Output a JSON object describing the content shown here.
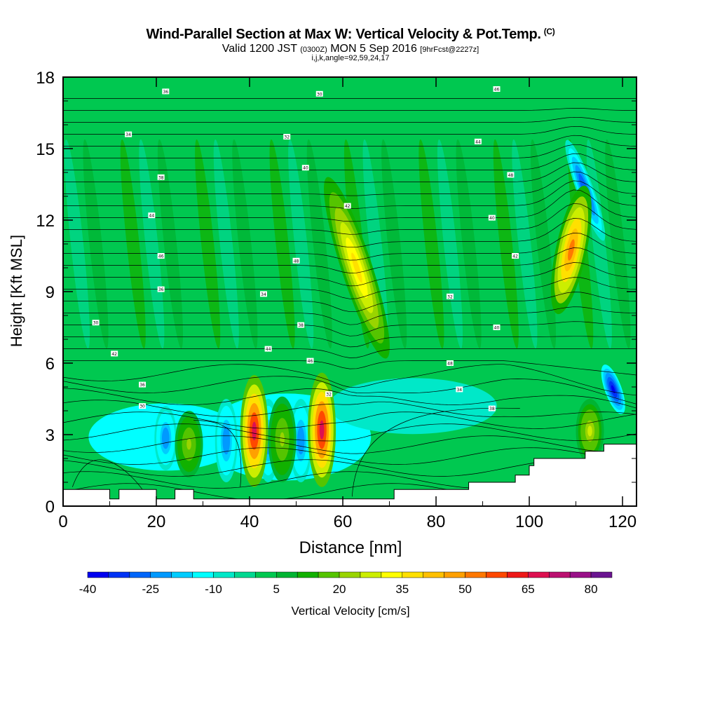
{
  "title": "Wind-Parallel Section at Max W: Vertical Velocity & Pot.Temp.",
  "title_tag": "(C)",
  "subtitle_valid": "Valid 1200 JST",
  "subtitle_utc": "(0300Z)",
  "subtitle_date": "MON 5 Sep 2016",
  "subtitle_fcst": "[9hrFcst@2227z]",
  "subtitle2": "i,j,k,angle=92,59,24,17",
  "chart_data": {
    "type": "heatmap",
    "xlabel": "Distance [nm]",
    "ylabel": "Height [Kft MSL]",
    "xlim": [
      0,
      123
    ],
    "ylim": [
      0,
      18
    ],
    "x_ticks": [
      0,
      20,
      40,
      60,
      80,
      100,
      120
    ],
    "y_ticks": [
      0,
      3,
      6,
      9,
      12,
      15,
      18
    ],
    "colorbar": {
      "label": "Vertical Velocity [cm/s]",
      "min": -40,
      "max": 85,
      "step": 5,
      "tick_labels": [
        "-40",
        "-25",
        "-10",
        "5",
        "20",
        "35",
        "50",
        "65",
        "80"
      ],
      "colors": [
        "#0000f0",
        "#0033f5",
        "#0066fa",
        "#0099ff",
        "#00ccff",
        "#00ffff",
        "#00e8c8",
        "#00d890",
        "#00c850",
        "#00b432",
        "#11b100",
        "#55c400",
        "#99d400",
        "#ccee00",
        "#ffff00",
        "#ffe000",
        "#ffc000",
        "#ffa000",
        "#ff7800",
        "#ff4800",
        "#ee1818",
        "#dd1050",
        "#bb1070",
        "#991088",
        "#6a1490"
      ]
    },
    "updrafts": [
      {
        "x": 41,
        "z_bottom": 0.8,
        "z_top": 5.5,
        "max_w": 65
      },
      {
        "x": 55.5,
        "z_bottom": 0.8,
        "z_top": 5.6,
        "max_w": 65
      },
      {
        "x": 27,
        "z_bottom": 1.2,
        "z_top": 4.0,
        "max_w": 20
      },
      {
        "x": 47,
        "z_bottom": 1.0,
        "z_top": 4.6,
        "max_w": 20
      },
      {
        "x": 63,
        "z_bottom": 6.0,
        "z_top": 14.0,
        "max_w": 35
      },
      {
        "x": 109,
        "z_bottom": 8.0,
        "z_top": 13.5,
        "max_w": 50
      },
      {
        "x": 113,
        "z_bottom": 1.8,
        "z_top": 4.5,
        "max_w": 25
      }
    ],
    "downdrafts": [
      {
        "x": 22,
        "z_bottom": 1.5,
        "z_top": 4.2,
        "min_w": -25
      },
      {
        "x": 35,
        "z_bottom": 1.0,
        "z_top": 4.5,
        "min_w": -25
      },
      {
        "x": 44,
        "z_bottom": 1.0,
        "z_top": 4.5,
        "min_w": -25
      },
      {
        "x": 51,
        "z_bottom": 1.0,
        "z_top": 4.5,
        "min_w": -25
      },
      {
        "x": 118,
        "z_bottom": 3.8,
        "z_top": 6.0,
        "min_w": -40
      },
      {
        "x": 112,
        "z_bottom": 11.0,
        "z_top": 15.5,
        "min_w": -30
      }
    ],
    "terrain": [
      [
        0,
        0.7
      ],
      [
        10,
        0.7
      ],
      [
        10,
        0.3
      ],
      [
        12,
        0.3
      ],
      [
        12,
        0.7
      ],
      [
        20,
        0.7
      ],
      [
        20,
        0.3
      ],
      [
        24,
        0.3
      ],
      [
        24,
        0.7
      ],
      [
        28,
        0.7
      ],
      [
        28,
        0.3
      ],
      [
        71,
        0.3
      ],
      [
        71,
        0.7
      ],
      [
        87,
        0.7
      ],
      [
        87,
        1.0
      ],
      [
        97,
        1.0
      ],
      [
        97,
        1.3
      ],
      [
        100,
        1.3
      ],
      [
        100,
        1.7
      ],
      [
        101,
        1.7
      ],
      [
        101,
        2.0
      ],
      [
        105,
        2.0
      ],
      [
        105,
        2.0
      ],
      [
        112,
        2.0
      ],
      [
        112,
        2.3
      ],
      [
        116,
        2.3
      ],
      [
        116,
        2.6
      ],
      [
        123,
        2.6
      ]
    ],
    "theta_labels": [
      "36",
      "34",
      "32",
      "30",
      "38",
      "40",
      "42",
      "44",
      "46",
      "48"
    ]
  }
}
